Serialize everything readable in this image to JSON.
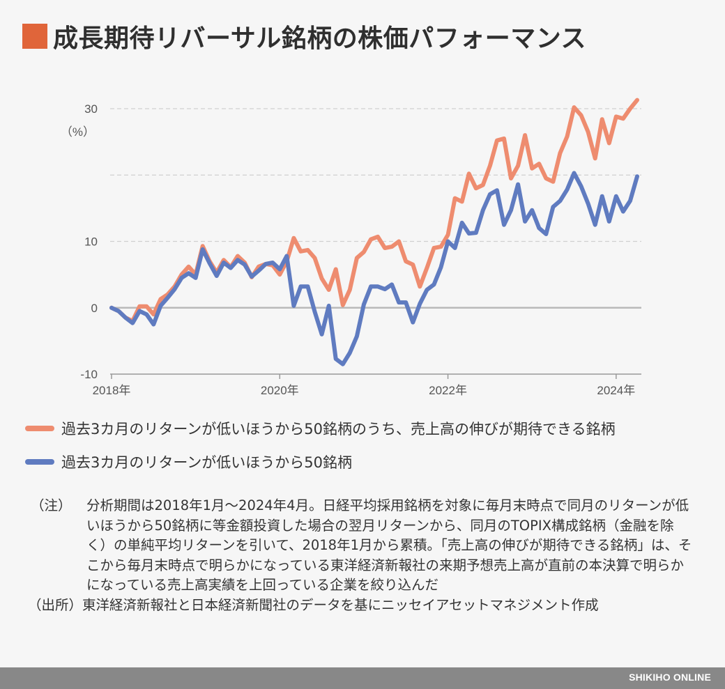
{
  "title": "成長期待リバーサル銘柄の株価パフォーマンス",
  "colors": {
    "accent": "#e0653a",
    "orange_line": "#ee8c6f",
    "blue_line": "#5f7bc0"
  },
  "chart_data": {
    "type": "line",
    "unit_label": "（%）",
    "ylim": [
      -10,
      30
    ],
    "y_ticks": [
      {
        "value": 30,
        "label": "30"
      },
      {
        "value": 10,
        "label": "10"
      },
      {
        "value": 0,
        "label": "0"
      },
      {
        "value": -10,
        "label": "-10"
      }
    ],
    "gridlines": [
      30,
      20,
      10
    ],
    "x_ticks": [
      {
        "value": "2018-01",
        "label": "2018年"
      },
      {
        "value": "2020-01",
        "label": "2020年"
      },
      {
        "value": "2022-01",
        "label": "2022年"
      },
      {
        "value": "2024-01",
        "label": "2024年"
      }
    ],
    "x": [
      "2018-01",
      "2018-02",
      "2018-03",
      "2018-04",
      "2018-05",
      "2018-06",
      "2018-07",
      "2018-08",
      "2018-09",
      "2018-10",
      "2018-11",
      "2018-12",
      "2019-01",
      "2019-02",
      "2019-03",
      "2019-04",
      "2019-05",
      "2019-06",
      "2019-07",
      "2019-08",
      "2019-09",
      "2019-10",
      "2019-11",
      "2019-12",
      "2020-01",
      "2020-02",
      "2020-03",
      "2020-04",
      "2020-05",
      "2020-06",
      "2020-07",
      "2020-08",
      "2020-09",
      "2020-10",
      "2020-11",
      "2020-12",
      "2021-01",
      "2021-02",
      "2021-03",
      "2021-04",
      "2021-05",
      "2021-06",
      "2021-07",
      "2021-08",
      "2021-09",
      "2021-10",
      "2021-11",
      "2021-12",
      "2022-01",
      "2022-02",
      "2022-03",
      "2022-04",
      "2022-05",
      "2022-06",
      "2022-07",
      "2022-08",
      "2022-09",
      "2022-10",
      "2022-11",
      "2022-12",
      "2023-01",
      "2023-02",
      "2023-03",
      "2023-04",
      "2023-05",
      "2023-06",
      "2023-07",
      "2023-08",
      "2023-09",
      "2023-10",
      "2023-11",
      "2023-12",
      "2024-01",
      "2024-02",
      "2024-03",
      "2024-04"
    ],
    "series": [
      {
        "name": "過去3カ月のリターンが低いほうから50銘柄のうち、売上高の伸びが期待できる銘柄",
        "color": "#ee8c6f",
        "values": [
          0,
          -0.5,
          -1.5,
          -2,
          0.2,
          0.2,
          -1,
          1.3,
          2,
          3.2,
          5,
          6.2,
          5,
          9.3,
          7,
          5.3,
          7.2,
          6.1,
          7.8,
          6.8,
          4.6,
          6.2,
          6.6,
          6.4,
          5,
          7,
          10.5,
          8.5,
          8.7,
          7.5,
          4.4,
          2.7,
          5.8,
          0.4,
          2.7,
          7.5,
          8.4,
          10.3,
          10.7,
          9,
          9.2,
          10,
          7,
          6.5,
          3.2,
          6,
          9,
          9.2,
          11,
          16.5,
          16,
          20.2,
          18,
          18.5,
          21.4,
          25.2,
          25.5,
          19.5,
          21.4,
          26,
          21,
          21.7,
          19.5,
          19,
          23.3,
          25.8,
          30.2,
          29,
          26.5,
          22.5,
          28.4,
          24.8,
          28.8,
          28.5,
          30,
          31.3
        ],
        "dash": false
      },
      {
        "name": "過去3カ月のリターンが低いほうから50銘柄",
        "color": "#5f7bc0",
        "values": [
          0,
          -0.5,
          -1.5,
          -2.3,
          -0.5,
          -1,
          -2.5,
          0.3,
          1.5,
          2.8,
          4.5,
          5.2,
          4.5,
          8.8,
          6.7,
          4.8,
          6.8,
          6,
          7.2,
          6.5,
          4.7,
          5.6,
          6.6,
          6.8,
          5.8,
          7.8,
          0.3,
          3.2,
          3.2,
          -0.6,
          -4,
          0.3,
          -7.7,
          -8.5,
          -6.8,
          -4.3,
          0.5,
          3.2,
          3.2,
          2.8,
          3.5,
          0.8,
          0.8,
          -2.2,
          0.6,
          2.7,
          3.5,
          6.1,
          10,
          9,
          12.8,
          11.2,
          11.3,
          14.7,
          17.1,
          17.7,
          12.5,
          14.7,
          18.6,
          13,
          14.7,
          12,
          11.1,
          15.2,
          16.1,
          17.8,
          20.3,
          18.3,
          15.7,
          12.5,
          16.8,
          13,
          16.8,
          14.5,
          16.1,
          19.8
        ],
        "dash": false
      }
    ]
  },
  "notes": {
    "label": "（注）",
    "text": "分析期間は2018年1月～2024年4月。日経平均採用銘柄を対象に毎月末時点で同月のリターンが低いほうから50銘柄に等金額投資した場合の翌月リターンから、同月のTOPIX構成銘柄（金融を除く）の単純平均リターンを引いて、2018年1月から累積。「売上高の伸びが期待できる銘柄」は、そこから毎月末時点で明らかになっている東洋経済新報社の来期予想売上高が直前の本決算で明らかになっている売上高実績を上回っている企業を絞り込んだ",
    "source_label": "（出所）",
    "source_text": "東洋経済新報社と日本経済新聞社のデータを基にニッセイアセットマネジメント作成"
  },
  "footer": {
    "brand": "SHIKIHO ONLINE"
  }
}
